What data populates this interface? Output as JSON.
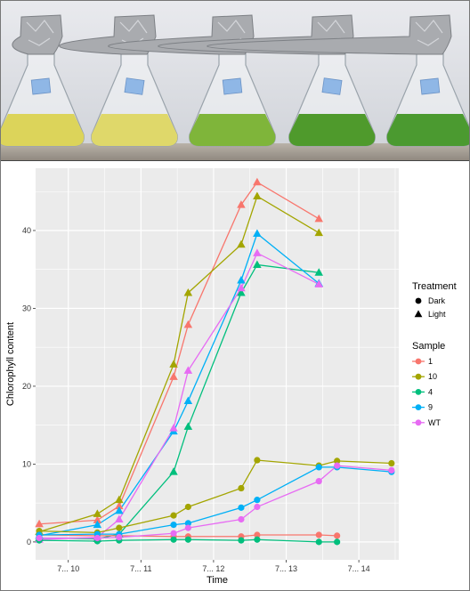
{
  "photo": {
    "flasks": [
      {
        "label": "",
        "liquid": "#dcd45a"
      },
      {
        "label": "",
        "liquid": "#dfd86a"
      },
      {
        "label": "",
        "liquid": "#7fb53a"
      },
      {
        "label": "",
        "liquid": "#4f9a2c"
      },
      {
        "label": "",
        "liquid": "#4b9a30"
      }
    ]
  },
  "chart_data": {
    "type": "line",
    "xlabel": "Time",
    "ylabel": "Chlorophyll content",
    "xlim": [
      9.55,
      14.55
    ],
    "ylim": [
      -2.3,
      48
    ],
    "x_ticks": [
      10,
      11,
      12,
      13,
      14
    ],
    "x_tick_labels": [
      "7... 10",
      "7... 11",
      "7... 12",
      "7... 13",
      "7... 14"
    ],
    "y_ticks": [
      0,
      10,
      20,
      30,
      40
    ],
    "y_tick_labels": [
      "0",
      "10",
      "20",
      "30",
      "40"
    ],
    "grid": true,
    "legend_placement": "right",
    "legend": {
      "treatment_title": "Treatment",
      "treatments": [
        {
          "key": "Dark",
          "label": "Dark",
          "shape": "circle"
        },
        {
          "key": "Light",
          "label": "Light",
          "shape": "triangle"
        }
      ],
      "sample_title": "Sample",
      "samples": [
        {
          "key": "1",
          "label": "1",
          "color": "#F8766D"
        },
        {
          "key": "10",
          "label": "10",
          "color": "#A3A500"
        },
        {
          "key": "4",
          "label": "4",
          "color": "#00BF7D"
        },
        {
          "key": "9",
          "label": "9",
          "color": "#00B0F6"
        },
        {
          "key": "WT",
          "label": "WT",
          "color": "#E76BF3"
        }
      ]
    },
    "series": [
      {
        "sample": "1",
        "treatment": "Light",
        "x": [
          9.6,
          10.4,
          10.7,
          11.45,
          11.65,
          12.38,
          12.6,
          13.45
        ],
        "y": [
          2.3,
          2.8,
          4.6,
          21.2,
          27.9,
          43.3,
          46.2,
          41.5
        ]
      },
      {
        "sample": "10",
        "treatment": "Light",
        "x": [
          9.6,
          10.4,
          10.7,
          11.45,
          11.65,
          12.38,
          12.6,
          13.45
        ],
        "y": [
          1.3,
          3.6,
          5.4,
          22.8,
          32.0,
          38.2,
          44.4,
          39.7
        ]
      },
      {
        "sample": "4",
        "treatment": "Light",
        "x": [
          9.6,
          10.4,
          10.7,
          11.45,
          11.65,
          12.38,
          12.6,
          13.45
        ],
        "y": [
          0.5,
          0.4,
          1.0,
          9.0,
          14.8,
          32.0,
          35.6,
          34.6
        ]
      },
      {
        "sample": "9",
        "treatment": "Light",
        "x": [
          9.6,
          10.4,
          10.7,
          11.45,
          11.65,
          12.38,
          12.6,
          13.45
        ],
        "y": [
          0.8,
          2.2,
          4.0,
          14.2,
          18.1,
          33.6,
          39.6,
          33.2
        ]
      },
      {
        "sample": "WT",
        "treatment": "Light",
        "x": [
          9.6,
          10.4,
          10.7,
          11.45,
          11.65,
          12.38,
          12.6,
          13.45
        ],
        "y": [
          0.3,
          0.6,
          2.9,
          14.6,
          22.0,
          32.6,
          37.1,
          33.1
        ]
      },
      {
        "sample": "1",
        "treatment": "Dark",
        "x": [
          9.6,
          10.4,
          10.7,
          11.45,
          11.65,
          12.38,
          12.6,
          13.45,
          13.7
        ],
        "y": [
          0.9,
          0.8,
          0.8,
          0.7,
          0.7,
          0.7,
          0.9,
          0.9,
          0.8
        ]
      },
      {
        "sample": "10",
        "treatment": "Dark",
        "x": [
          9.6,
          10.4,
          10.7,
          11.45,
          11.65,
          12.38,
          12.6,
          13.45,
          13.7,
          14.45
        ],
        "y": [
          1.4,
          1.2,
          1.8,
          3.4,
          4.5,
          6.9,
          10.5,
          9.8,
          10.4,
          10.1
        ]
      },
      {
        "sample": "4",
        "treatment": "Dark",
        "x": [
          9.6,
          10.4,
          10.7,
          11.45,
          11.65,
          12.38,
          12.6,
          13.45,
          13.7
        ],
        "y": [
          0.2,
          0.1,
          0.2,
          0.3,
          0.3,
          0.2,
          0.3,
          0.0,
          0.0
        ]
      },
      {
        "sample": "9",
        "treatment": "Dark",
        "x": [
          9.6,
          10.4,
          10.7,
          11.45,
          11.65,
          12.38,
          12.6,
          13.45,
          13.7,
          14.45
        ],
        "y": [
          0.9,
          1.0,
          1.0,
          2.2,
          2.4,
          4.4,
          5.4,
          9.6,
          9.6,
          9.0
        ]
      },
      {
        "sample": "WT",
        "treatment": "Dark",
        "x": [
          9.6,
          10.4,
          10.7,
          11.45,
          11.65,
          12.38,
          12.6,
          13.45,
          13.7,
          14.45
        ],
        "y": [
          0.5,
          0.5,
          0.6,
          1.1,
          1.8,
          2.9,
          4.5,
          7.8,
          9.8,
          9.2
        ]
      }
    ]
  }
}
